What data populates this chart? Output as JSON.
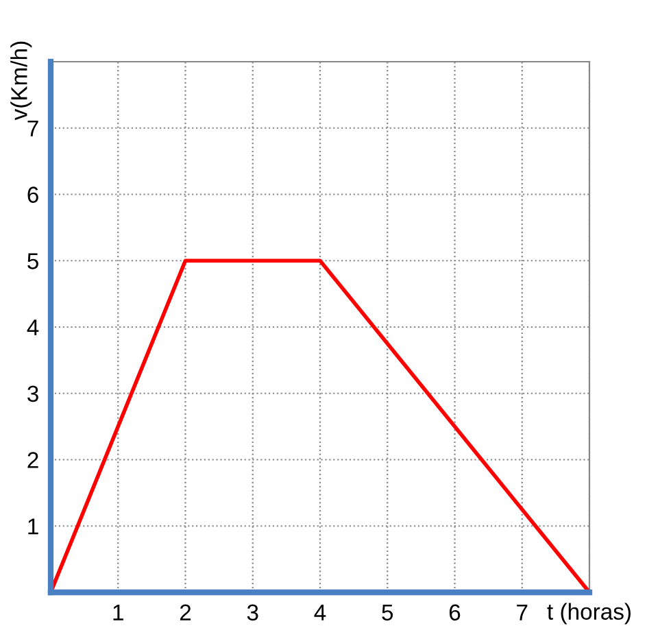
{
  "chart_data": {
    "type": "line",
    "xlabel": "t (horas)",
    "ylabel": "v(Km/h)",
    "x": [
      0,
      2,
      4,
      8
    ],
    "series": [
      {
        "color": "#ff0000",
        "values": [
          0,
          5,
          5,
          0
        ]
      }
    ],
    "xlim": [
      0,
      8
    ],
    "ylim": [
      0,
      8
    ],
    "xticks": [
      {
        "value": 0,
        "label": null
      },
      1,
      2,
      3,
      4,
      5,
      6,
      7,
      {
        "value": 8,
        "label": null
      }
    ],
    "yticks": [
      {
        "value": 0,
        "label": null
      },
      1,
      2,
      3,
      4,
      5,
      6,
      7,
      {
        "value": 8,
        "label": null
      }
    ],
    "grid": true,
    "marker": "none",
    "line_style": "solid",
    "legend": false
  }
}
